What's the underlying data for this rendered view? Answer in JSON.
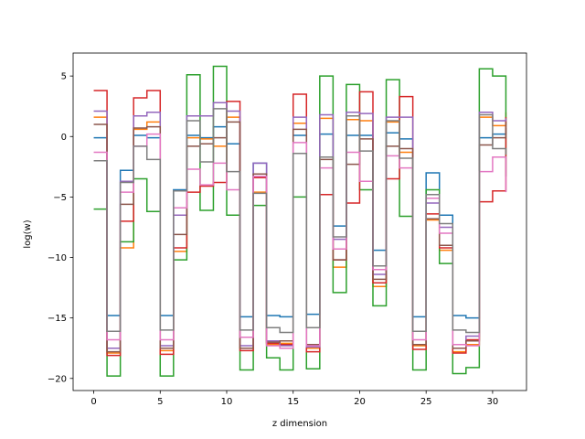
{
  "chart_data": {
    "type": "line",
    "step": "post",
    "xlabel": "z dimension",
    "ylabel": "log(w)",
    "xlim": [
      -1.55,
      32.55
    ],
    "ylim": [
      -21.0,
      6.9
    ],
    "xticks": [
      0,
      5,
      10,
      15,
      20,
      25,
      30
    ],
    "yticks": [
      5,
      0,
      -5,
      -10,
      -15,
      -20
    ],
    "x": [
      0,
      1,
      2,
      3,
      4,
      5,
      6,
      7,
      8,
      9,
      10,
      11,
      12,
      13,
      14,
      15,
      16,
      17,
      18,
      19,
      20,
      21,
      22,
      23,
      24,
      25,
      26,
      27,
      28,
      29,
      30,
      31
    ],
    "series": [
      {
        "color": "#1f77b4",
        "values": [
          -0.1,
          -14.8,
          -2.8,
          0.1,
          -0.1,
          -14.8,
          -4.4,
          0.1,
          -0.1,
          0.8,
          -0.6,
          -14.9,
          -2.2,
          -14.8,
          -14.9,
          0.1,
          -14.7,
          0.2,
          -7.4,
          0.1,
          0.1,
          -9.4,
          0.3,
          -0.2,
          -14.9,
          -3.0,
          -6.5,
          -14.8,
          -15.0,
          -0.1,
          0.2,
          0.7
        ]
      },
      {
        "color": "#ff7f0e",
        "values": [
          1.6,
          -17.9,
          -9.2,
          0.6,
          1.2,
          -17.7,
          -9.5,
          -0.1,
          -0.2,
          -0.8,
          1.6,
          -17.5,
          -4.6,
          -17.2,
          -17.1,
          1.1,
          -17.5,
          1.5,
          -10.8,
          1.4,
          1.3,
          -12.4,
          1.2,
          -1.3,
          -17.3,
          -6.9,
          -9.4,
          -17.8,
          -17.2,
          1.6,
          0.9,
          2.0
        ]
      },
      {
        "color": "#2ca02c",
        "values": [
          -6.0,
          -19.8,
          -8.7,
          -3.5,
          -6.2,
          -19.8,
          -10.2,
          5.1,
          -6.1,
          5.8,
          -6.5,
          -19.3,
          -5.7,
          -18.3,
          -19.3,
          -5.0,
          -19.2,
          5.0,
          -12.9,
          4.3,
          -4.4,
          -14.0,
          4.7,
          -6.6,
          -19.3,
          -4.4,
          -10.5,
          -19.6,
          -19.1,
          5.6,
          5.0,
          -3.3
        ]
      },
      {
        "color": "#d62728",
        "values": [
          3.8,
          -18.1,
          -7.0,
          3.2,
          3.8,
          -18.0,
          -9.2,
          -4.6,
          -4.1,
          -3.8,
          2.9,
          -17.7,
          -3.4,
          -17.1,
          -17.2,
          3.5,
          -17.8,
          -4.8,
          -10.2,
          -5.5,
          3.7,
          -12.1,
          -3.5,
          3.3,
          -17.6,
          -6.4,
          -9.2,
          -17.9,
          -16.8,
          -5.4,
          -4.5,
          1.6
        ]
      },
      {
        "color": "#9467bd",
        "values": [
          2.1,
          -17.5,
          -3.7,
          1.7,
          2.0,
          -17.3,
          -6.5,
          1.7,
          1.7,
          2.8,
          2.1,
          -17.3,
          -2.2,
          -16.9,
          -17.3,
          1.6,
          -17.4,
          1.8,
          -8.5,
          2.0,
          1.9,
          -11.4,
          1.6,
          1.6,
          -17.2,
          -5.5,
          -7.5,
          -17.5,
          -16.5,
          2.0,
          1.3,
          1.5
        ]
      },
      {
        "color": "#8c564b",
        "values": [
          1.0,
          -17.8,
          -5.6,
          0.7,
          0.8,
          -17.5,
          -8.1,
          -0.8,
          -0.6,
          -0.1,
          1.2,
          -17.5,
          -3.1,
          -17.0,
          -16.9,
          0.6,
          -17.2,
          -1.9,
          -10.2,
          -2.3,
          -0.2,
          -11.8,
          -0.8,
          -1.0,
          -17.2,
          -6.8,
          -9.0,
          -17.5,
          -16.9,
          -0.7,
          -0.1,
          1.2
        ]
      },
      {
        "color": "#e377c2",
        "values": [
          -1.3,
          -16.8,
          -4.6,
          -0.8,
          0.2,
          -16.8,
          -5.9,
          -2.7,
          -4.0,
          -2.2,
          -4.4,
          -16.6,
          -3.3,
          -17.3,
          -17.5,
          -0.5,
          -17.3,
          -2.6,
          -9.3,
          -1.3,
          -3.7,
          -11.0,
          -1.6,
          -2.6,
          -16.8,
          -5.1,
          -8.0,
          -17.2,
          -17.3,
          -2.9,
          -1.7,
          -4.6
        ]
      },
      {
        "color": "#7f7f7f",
        "values": [
          -2.0,
          -16.1,
          -3.8,
          -0.8,
          -1.9,
          -16.0,
          -4.5,
          1.3,
          -2.1,
          2.3,
          -2.9,
          -16.0,
          -4.7,
          -15.8,
          -16.2,
          -1.4,
          -15.8,
          -1.7,
          -8.3,
          1.7,
          -1.2,
          -10.7,
          1.3,
          -1.8,
          -16.1,
          -4.8,
          -7.2,
          -16.0,
          -16.2,
          1.8,
          -1.0,
          -1.5
        ]
      }
    ]
  }
}
